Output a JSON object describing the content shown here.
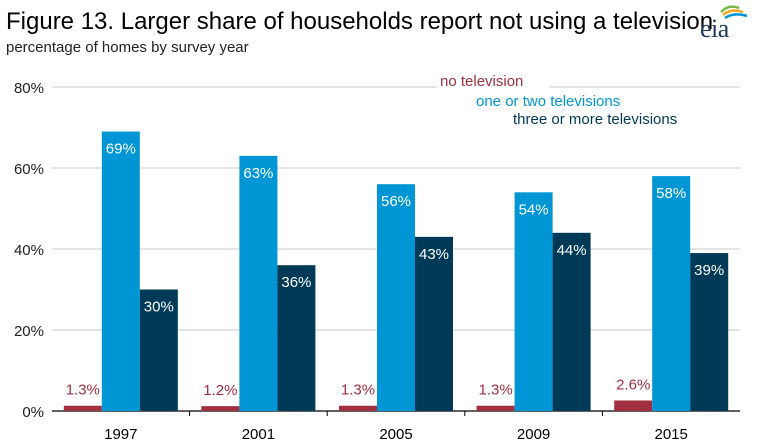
{
  "header": {
    "title": "Figure 13. Larger share of households report not using a television",
    "subtitle": "percentage of homes by survey year",
    "logo_text": "eia"
  },
  "colors": {
    "no_tv": "#a03040",
    "one_two": "#0096d6",
    "three_plus": "#003a57",
    "grid": "#c8c8c8",
    "axis": "#000000",
    "label_light": "#ffffff"
  },
  "chart_data": {
    "type": "bar",
    "title": "Figure 13. Larger share of households report not using a television",
    "subtitle": "percentage of homes by survey year",
    "xlabel": "",
    "ylabel": "",
    "ylim": [
      0,
      80
    ],
    "yticks": [
      0,
      20,
      40,
      60,
      80
    ],
    "ytick_labels": [
      "0%",
      "20%",
      "40%",
      "60%",
      "80%"
    ],
    "grid": true,
    "categories": [
      "1997",
      "2001",
      "2005",
      "2009",
      "2015"
    ],
    "series": [
      {
        "name": "no television",
        "values": [
          1.3,
          1.2,
          1.3,
          1.3,
          2.6
        ],
        "labels": [
          "1.3%",
          "1.2%",
          "1.3%",
          "1.3%",
          "2.6%"
        ]
      },
      {
        "name": "one or two televisions",
        "values": [
          69,
          63,
          56,
          54,
          58
        ],
        "labels": [
          "69%",
          "63%",
          "56%",
          "54%",
          "58%"
        ]
      },
      {
        "name": "three or more televisions",
        "values": [
          30,
          36,
          43,
          44,
          39
        ],
        "labels": [
          "30%",
          "36%",
          "43%",
          "44%",
          "39%"
        ]
      }
    ],
    "legend_position": "top-right"
  }
}
